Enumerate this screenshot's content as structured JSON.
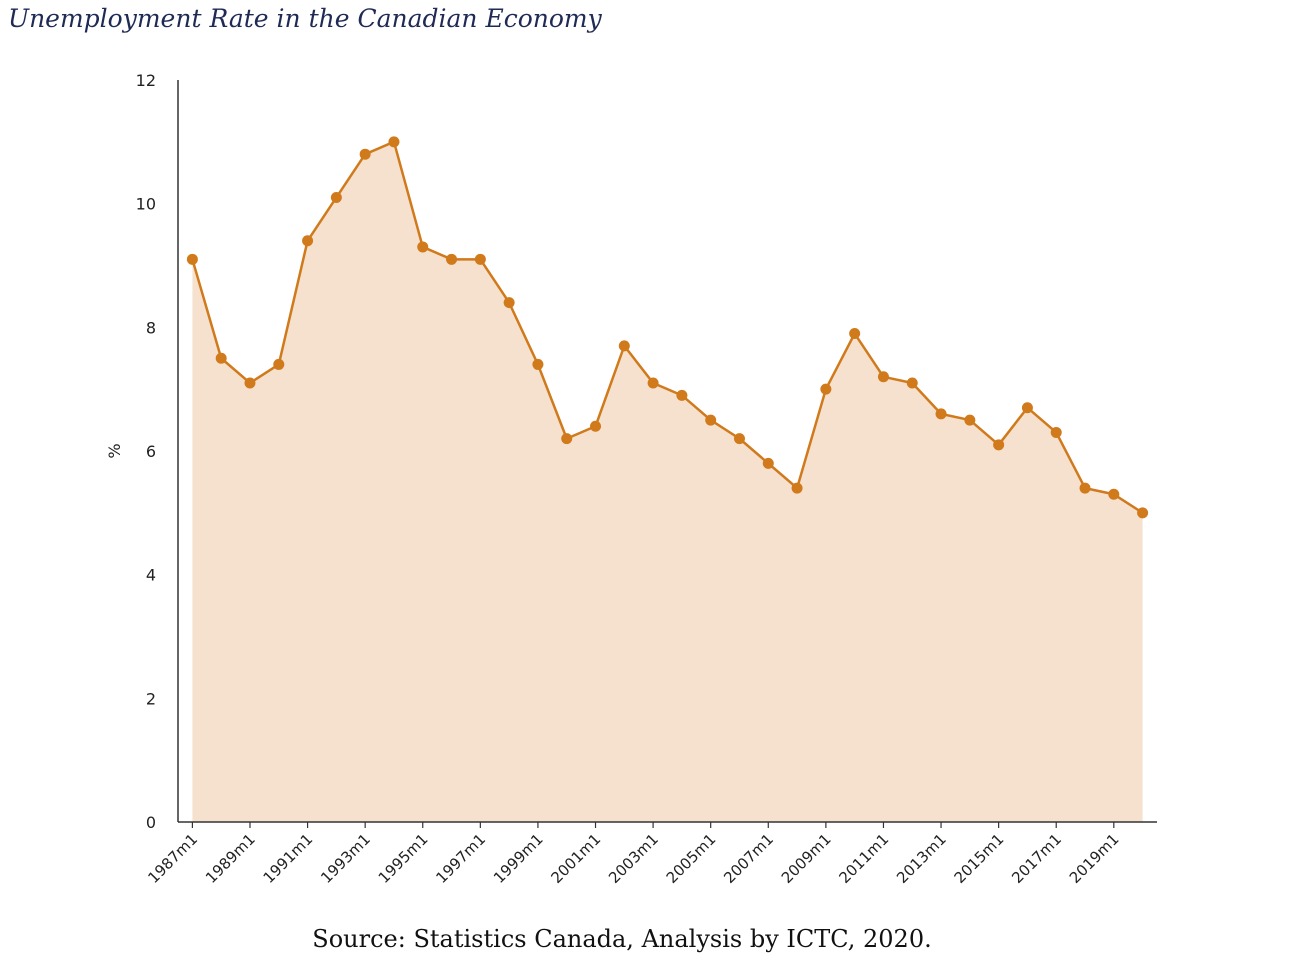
{
  "chart_data": {
    "type": "area",
    "title": "Unemployment Rate in the Canadian Economy",
    "ylabel": "%",
    "xlabel": "",
    "ylim": [
      0,
      12
    ],
    "yticks": [
      0,
      2,
      4,
      6,
      8,
      10,
      12
    ],
    "x_tick_labels": [
      "1987m1",
      "1989m1",
      "1991m1",
      "1993m1",
      "1995m1",
      "1997m1",
      "1999m1",
      "2001m1",
      "2003m1",
      "2005m1",
      "2007m1",
      "2009m1",
      "2011m1",
      "2013m1",
      "2015m1",
      "2017m1",
      "2019m1"
    ],
    "x_range": [
      1986.5,
      2020.5
    ],
    "series": [
      {
        "name": "Unemployment rate",
        "color": "#d07a1c",
        "fill": "#f6e1ce",
        "x": [
          1987,
          1988,
          1989,
          1990,
          1991,
          1992,
          1993,
          1994,
          1995,
          1996,
          1997,
          1998,
          1999,
          2000,
          2001,
          2002,
          2003,
          2004,
          2005,
          2006,
          2007,
          2008,
          2009,
          2010,
          2011,
          2012,
          2013,
          2014,
          2015,
          2016,
          2017,
          2018,
          2019,
          2020
        ],
        "values": [
          9.1,
          7.5,
          7.1,
          7.4,
          9.4,
          10.1,
          10.8,
          11.0,
          9.3,
          9.1,
          9.1,
          8.4,
          7.4,
          6.2,
          6.4,
          7.7,
          7.1,
          6.9,
          6.5,
          6.2,
          5.8,
          5.4,
          7.0,
          7.9,
          7.2,
          7.1,
          6.6,
          6.5,
          6.1,
          6.7,
          6.3,
          5.4,
          5.3,
          5.0
        ]
      }
    ],
    "source": "Source: Statistics Canada, Analysis by ICTC, 2020."
  }
}
